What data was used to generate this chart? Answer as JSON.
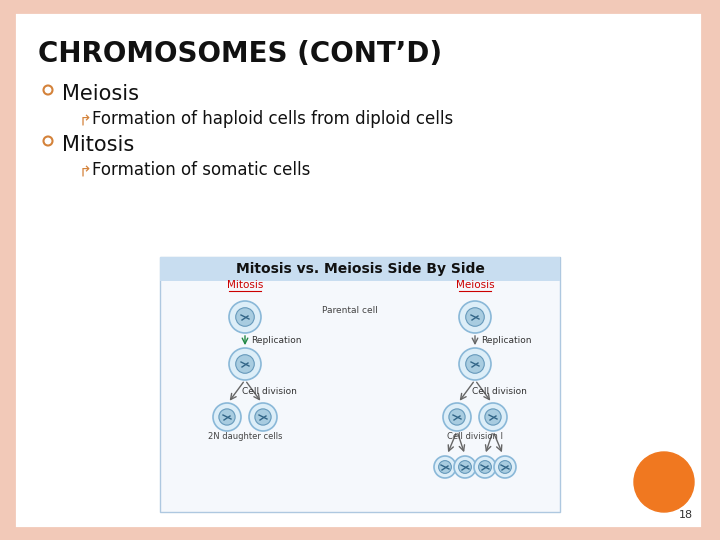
{
  "title": "CHROMOSOMES (CONT’D)",
  "bg_color": "#ffffff",
  "border_color": "#f2c9b8",
  "slide_bg": "#f2c9b8",
  "bullet1_main": "Meiosis",
  "bullet1_sub": "Formation of haploid cells from diploid cells",
  "bullet2_main": "Mitosis",
  "bullet2_sub": "Formation of somatic cells",
  "diagram_title": "Mitosis vs. Meiosis Side By Side",
  "page_number": "18",
  "orange_circle_color": "#f07820",
  "diagram_bg": "#c8ddf0",
  "diagram_inner_bg": "#f5f8fc",
  "diagram_border": "#aec8e0",
  "cell_outer": "#c8dff0",
  "cell_inner": "#8ab8d8",
  "title_font_size": 20,
  "bullet_main_font_size": 15,
  "bullet_sub_font_size": 12,
  "diagram_title_font_size": 10,
  "bullet_color": "#d4823a",
  "text_color": "#111111"
}
